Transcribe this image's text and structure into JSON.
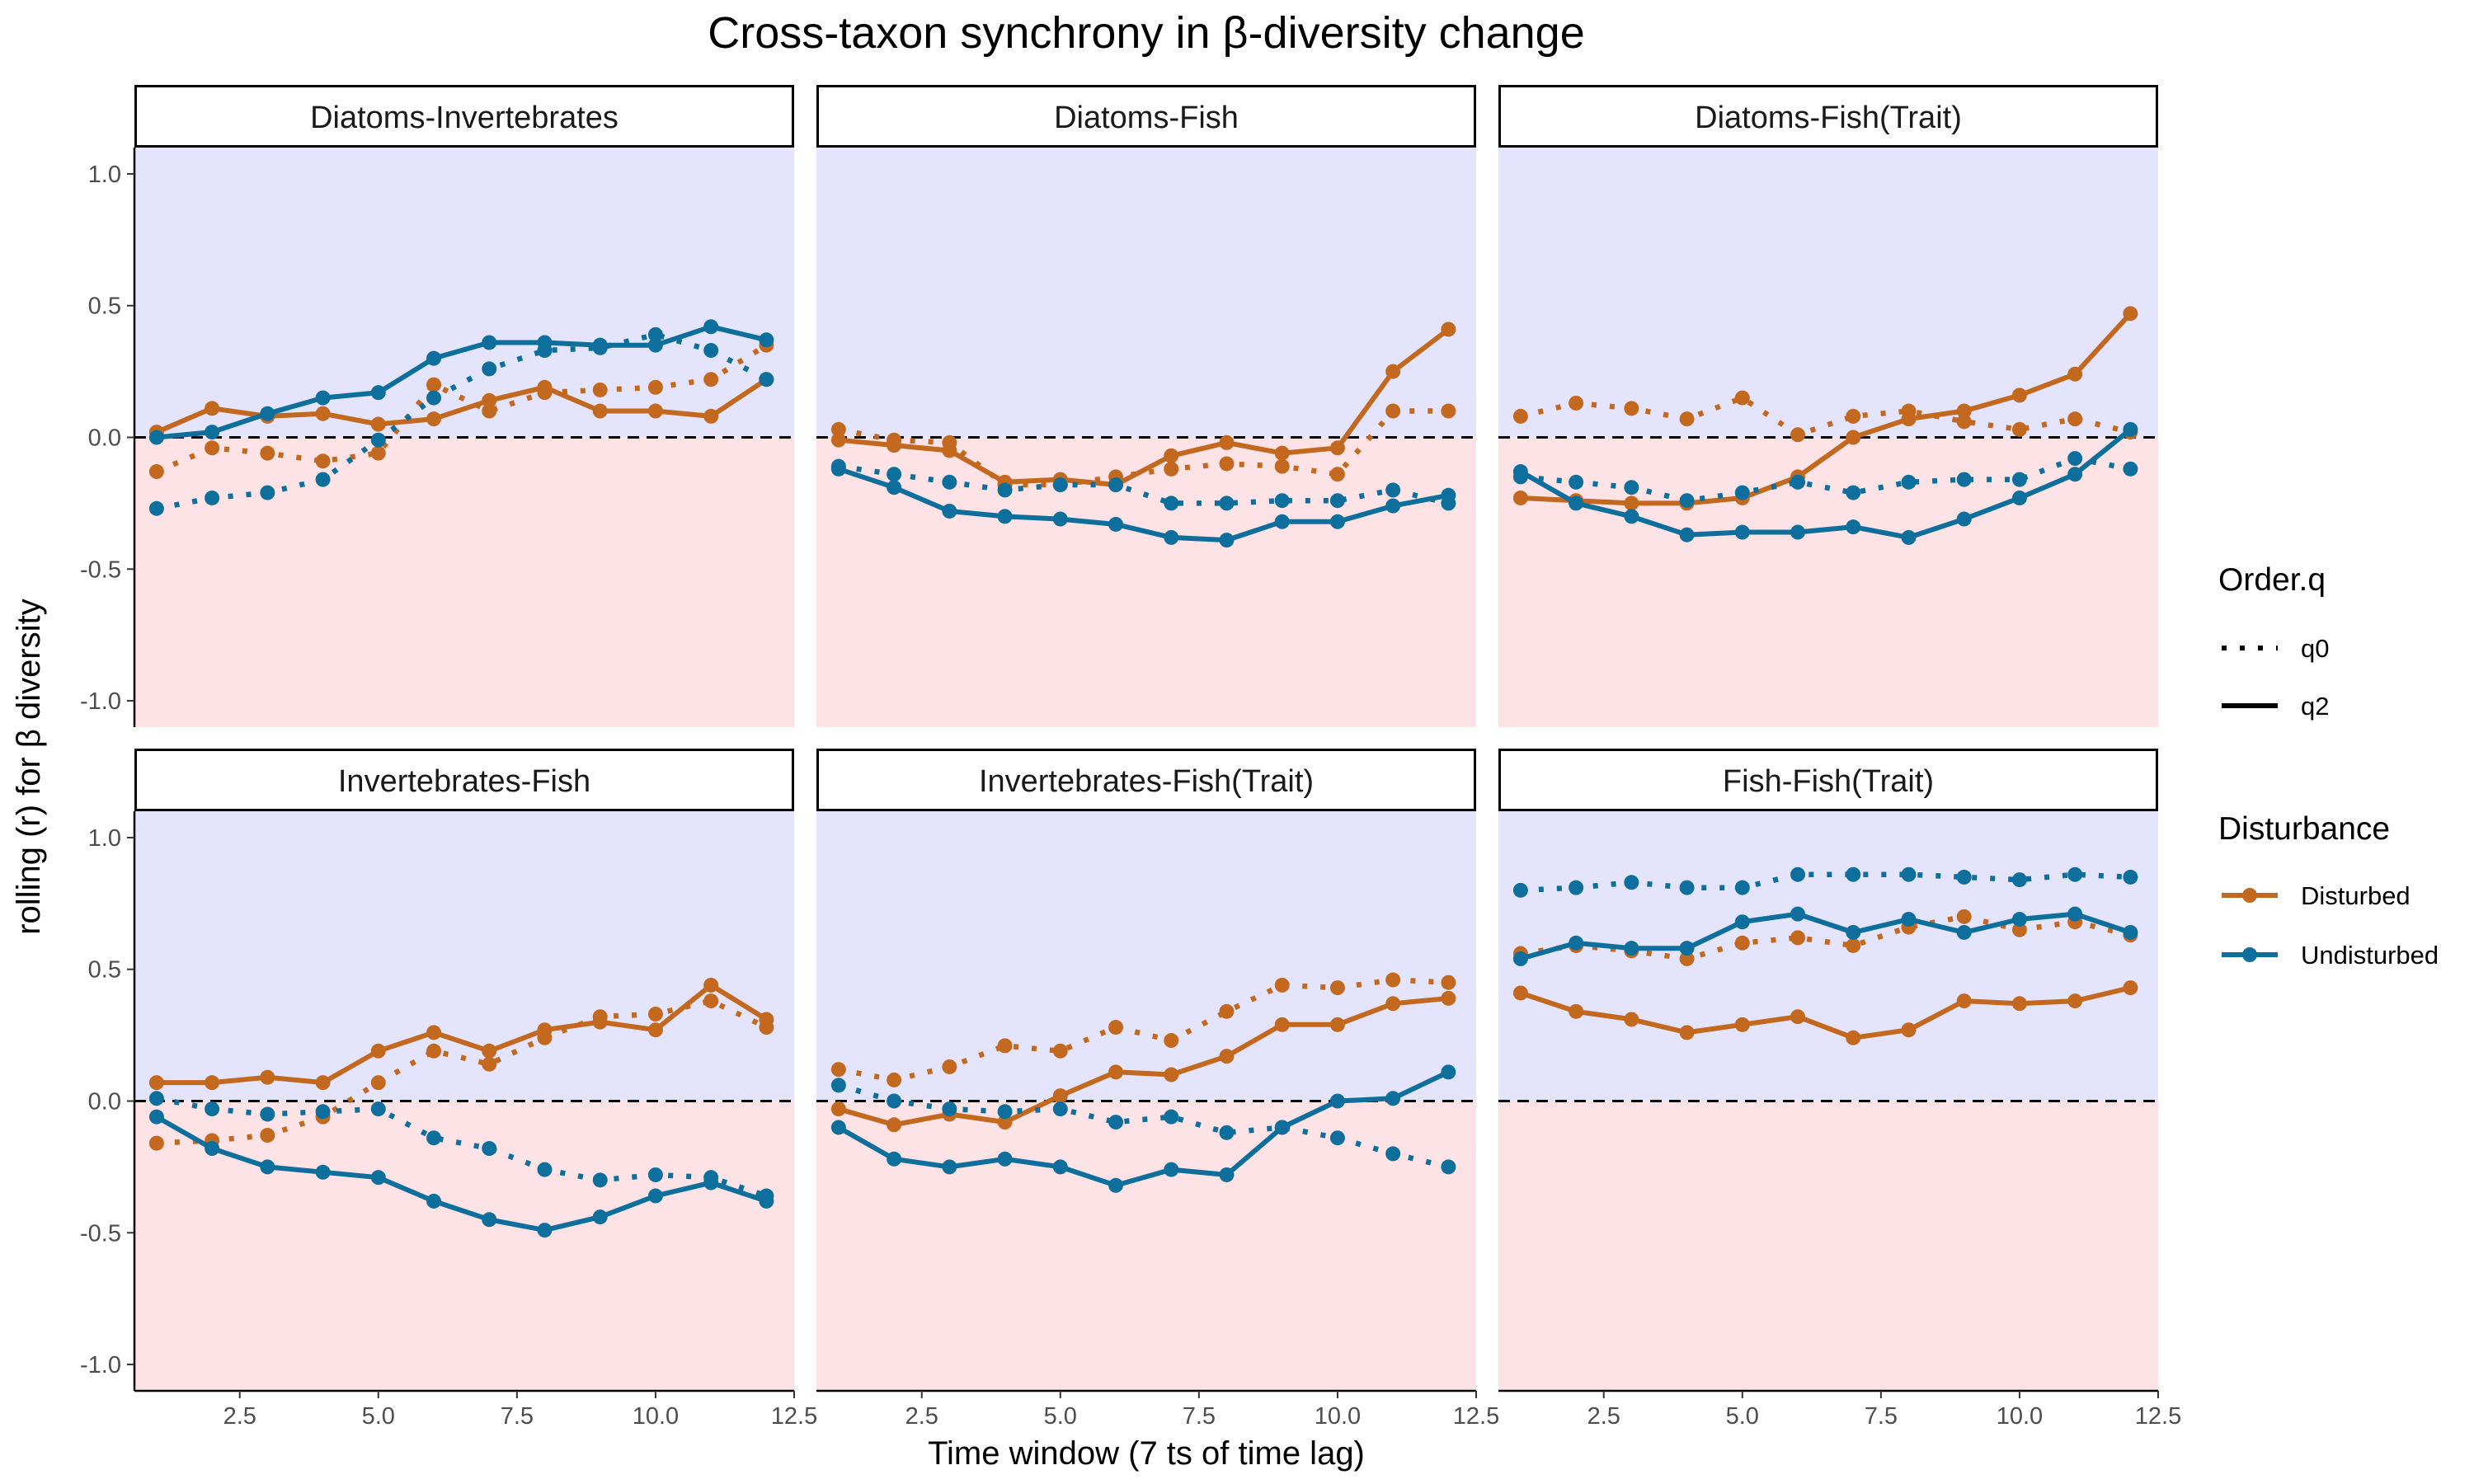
{
  "chart_data": {
    "type": "line",
    "title": "Cross-taxon synchrony in β-diversity change",
    "xlabel": "Time window (7 ts of time lag)",
    "ylabel": "rolling (r) for β diversity",
    "xlim": [
      0.6,
      12.5
    ],
    "ylim": [
      -1.1,
      1.1
    ],
    "x_ticks": [
      2.5,
      5.0,
      7.5,
      10.0,
      12.5
    ],
    "x_tick_labels": [
      "2.5",
      "5.0",
      "7.5",
      "10.0",
      "12.5"
    ],
    "y_ticks": [
      -1.0,
      -0.5,
      0.0,
      0.5,
      1.0
    ],
    "y_tick_labels": [
      "-1.0",
      "-0.5",
      "0.0",
      "0.5",
      "1.0"
    ],
    "reference_line": 0,
    "x": [
      1,
      2,
      3,
      4,
      5,
      6,
      7,
      8,
      9,
      10,
      11,
      12
    ],
    "colors": {
      "Disturbed": "#C2691F",
      "Undisturbed": "#0E6F9C",
      "positive_bg": "#E4E4FC",
      "negative_bg": "#FDE3E5"
    },
    "legend": {
      "placement": "right",
      "order_title": "Order.q",
      "order_items": [
        {
          "label": "q0",
          "linetype": "dotted"
        },
        {
          "label": "q2",
          "linetype": "solid"
        }
      ],
      "disturbance_title": "Disturbance",
      "disturbance_items": [
        {
          "label": "Disturbed"
        },
        {
          "label": "Undisturbed"
        }
      ]
    },
    "panels": [
      {
        "label": "Diatoms-Invertebrates",
        "series": [
          {
            "disturbance": "Disturbed",
            "order": "q0",
            "values": [
              -0.13,
              -0.04,
              -0.06,
              -0.09,
              -0.06,
              0.2,
              0.1,
              0.17,
              0.18,
              0.19,
              0.22,
              0.35
            ]
          },
          {
            "disturbance": "Disturbed",
            "order": "q2",
            "values": [
              0.02,
              0.11,
              0.08,
              0.09,
              0.05,
              0.07,
              0.14,
              0.19,
              0.1,
              0.1,
              0.08,
              0.22
            ]
          },
          {
            "disturbance": "Undisturbed",
            "order": "q0",
            "values": [
              -0.27,
              -0.23,
              -0.21,
              -0.16,
              -0.01,
              0.15,
              0.26,
              0.33,
              0.34,
              0.39,
              0.33,
              0.22
            ]
          },
          {
            "disturbance": "Undisturbed",
            "order": "q2",
            "values": [
              0.0,
              0.02,
              0.09,
              0.15,
              0.17,
              0.3,
              0.36,
              0.36,
              0.35,
              0.35,
              0.42,
              0.37
            ]
          }
        ]
      },
      {
        "label": "Diatoms-Fish",
        "series": [
          {
            "disturbance": "Disturbed",
            "order": "q0",
            "values": [
              0.03,
              -0.01,
              -0.02,
              -0.18,
              -0.18,
              -0.15,
              -0.12,
              -0.1,
              -0.11,
              -0.14,
              0.1,
              0.1
            ]
          },
          {
            "disturbance": "Disturbed",
            "order": "q2",
            "values": [
              -0.01,
              -0.03,
              -0.05,
              -0.17,
              -0.16,
              -0.18,
              -0.07,
              -0.02,
              -0.06,
              -0.04,
              0.25,
              0.41
            ]
          },
          {
            "disturbance": "Undisturbed",
            "order": "q0",
            "values": [
              -0.11,
              -0.14,
              -0.17,
              -0.2,
              -0.18,
              -0.18,
              -0.25,
              -0.25,
              -0.24,
              -0.24,
              -0.2,
              -0.25
            ]
          },
          {
            "disturbance": "Undisturbed",
            "order": "q2",
            "values": [
              -0.12,
              -0.19,
              -0.28,
              -0.3,
              -0.31,
              -0.33,
              -0.38,
              -0.39,
              -0.32,
              -0.32,
              -0.26,
              -0.22
            ]
          }
        ]
      },
      {
        "label": "Diatoms-Fish(Trait)",
        "series": [
          {
            "disturbance": "Disturbed",
            "order": "q0",
            "values": [
              0.08,
              0.13,
              0.11,
              0.07,
              0.15,
              0.01,
              0.08,
              0.1,
              0.06,
              0.03,
              0.07,
              0.02
            ]
          },
          {
            "disturbance": "Disturbed",
            "order": "q2",
            "values": [
              -0.23,
              -0.24,
              -0.25,
              -0.25,
              -0.23,
              -0.15,
              0.0,
              0.07,
              0.1,
              0.16,
              0.24,
              0.47
            ]
          },
          {
            "disturbance": "Undisturbed",
            "order": "q0",
            "values": [
              -0.15,
              -0.17,
              -0.19,
              -0.24,
              -0.21,
              -0.17,
              -0.21,
              -0.17,
              -0.16,
              -0.16,
              -0.08,
              -0.12
            ]
          },
          {
            "disturbance": "Undisturbed",
            "order": "q2",
            "values": [
              -0.13,
              -0.25,
              -0.3,
              -0.37,
              -0.36,
              -0.36,
              -0.34,
              -0.38,
              -0.31,
              -0.23,
              -0.14,
              0.03
            ]
          }
        ]
      },
      {
        "label": "Invertebrates-Fish",
        "series": [
          {
            "disturbance": "Disturbed",
            "order": "q0",
            "values": [
              -0.16,
              -0.15,
              -0.13,
              -0.06,
              0.07,
              0.19,
              0.14,
              0.24,
              0.32,
              0.33,
              0.38,
              0.28
            ]
          },
          {
            "disturbance": "Disturbed",
            "order": "q2",
            "values": [
              0.07,
              0.07,
              0.09,
              0.07,
              0.19,
              0.26,
              0.19,
              0.27,
              0.3,
              0.27,
              0.44,
              0.31
            ]
          },
          {
            "disturbance": "Undisturbed",
            "order": "q0",
            "values": [
              0.01,
              -0.03,
              -0.05,
              -0.04,
              -0.03,
              -0.14,
              -0.18,
              -0.26,
              -0.3,
              -0.28,
              -0.29,
              -0.36
            ]
          },
          {
            "disturbance": "Undisturbed",
            "order": "q2",
            "values": [
              -0.06,
              -0.18,
              -0.25,
              -0.27,
              -0.29,
              -0.38,
              -0.45,
              -0.49,
              -0.44,
              -0.36,
              -0.31,
              -0.38
            ]
          }
        ]
      },
      {
        "label": "Invertebrates-Fish(Trait)",
        "series": [
          {
            "disturbance": "Disturbed",
            "order": "q0",
            "values": [
              0.12,
              0.08,
              0.13,
              0.21,
              0.19,
              0.28,
              0.23,
              0.34,
              0.44,
              0.43,
              0.46,
              0.45
            ]
          },
          {
            "disturbance": "Disturbed",
            "order": "q2",
            "values": [
              -0.03,
              -0.09,
              -0.05,
              -0.08,
              0.02,
              0.11,
              0.1,
              0.17,
              0.29,
              0.29,
              0.37,
              0.39
            ]
          },
          {
            "disturbance": "Undisturbed",
            "order": "q0",
            "values": [
              0.06,
              0.0,
              -0.03,
              -0.04,
              -0.03,
              -0.08,
              -0.06,
              -0.12,
              -0.1,
              -0.14,
              -0.2,
              -0.25
            ]
          },
          {
            "disturbance": "Undisturbed",
            "order": "q2",
            "values": [
              -0.1,
              -0.22,
              -0.25,
              -0.22,
              -0.25,
              -0.32,
              -0.26,
              -0.28,
              -0.1,
              0.0,
              0.01,
              0.11
            ]
          }
        ]
      },
      {
        "label": "Fish-Fish(Trait)",
        "series": [
          {
            "disturbance": "Disturbed",
            "order": "q0",
            "values": [
              0.56,
              0.59,
              0.57,
              0.54,
              0.6,
              0.62,
              0.59,
              0.66,
              0.7,
              0.65,
              0.68,
              0.63
            ]
          },
          {
            "disturbance": "Disturbed",
            "order": "q2",
            "values": [
              0.41,
              0.34,
              0.31,
              0.26,
              0.29,
              0.32,
              0.24,
              0.27,
              0.38,
              0.37,
              0.38,
              0.43
            ]
          },
          {
            "disturbance": "Undisturbed",
            "order": "q0",
            "values": [
              0.8,
              0.81,
              0.83,
              0.81,
              0.81,
              0.86,
              0.86,
              0.86,
              0.85,
              0.84,
              0.86,
              0.85
            ]
          },
          {
            "disturbance": "Undisturbed",
            "order": "q2",
            "values": [
              0.54,
              0.6,
              0.58,
              0.58,
              0.68,
              0.71,
              0.64,
              0.69,
              0.64,
              0.69,
              0.71,
              0.64
            ]
          }
        ]
      }
    ]
  }
}
